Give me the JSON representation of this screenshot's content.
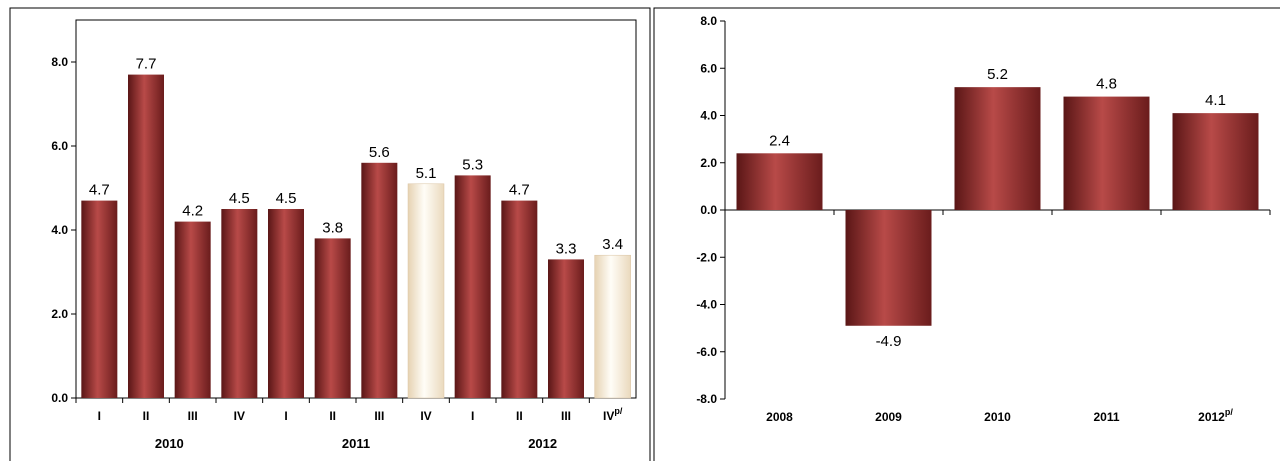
{
  "chart_data": [
    {
      "type": "bar",
      "categories": [
        "I",
        "II",
        "III",
        "IV",
        "I",
        "II",
        "III",
        "IV",
        "I",
        "II",
        "III",
        "IV"
      ],
      "category_superscripts": [
        "",
        "",
        "",
        "",
        "",
        "",
        "",
        "",
        "",
        "",
        "",
        "p/"
      ],
      "groups": [
        {
          "label": "2010",
          "span": [
            0,
            3
          ]
        },
        {
          "label": "2011",
          "span": [
            4,
            7
          ]
        },
        {
          "label": "2012",
          "span": [
            8,
            11
          ]
        }
      ],
      "values": [
        4.7,
        7.7,
        4.2,
        4.5,
        4.5,
        3.8,
        5.6,
        5.1,
        5.3,
        4.7,
        3.3,
        3.4
      ],
      "data_labels": [
        "4.7",
        "7.7",
        "4.2",
        "4.5",
        "4.5",
        "3.8",
        "5.6",
        "5.1",
        "5.3",
        "4.7",
        "3.3",
        "3.4"
      ],
      "highlight": [
        false,
        false,
        false,
        false,
        false,
        false,
        false,
        true,
        false,
        false,
        false,
        true
      ],
      "ylim": [
        0,
        9
      ],
      "yticks": [
        "0.0",
        "2.0",
        "4.0",
        "6.0",
        "8.0"
      ],
      "ytick_values": [
        0,
        2,
        4,
        6,
        8
      ],
      "grid": false,
      "colors": {
        "bar": "#8f2f2f",
        "bar_light": "#b84a48",
        "bar_dark": "#5a1616",
        "highlight": "#fbf5e8",
        "highlight_edge": "#d9c3a2"
      }
    },
    {
      "type": "bar",
      "categories": [
        "2008",
        "2009",
        "2010",
        "2011",
        "2012"
      ],
      "category_superscripts": [
        "",
        "",
        "",
        "",
        "p/"
      ],
      "values": [
        2.4,
        -4.9,
        5.2,
        4.8,
        4.1
      ],
      "data_labels": [
        "2.4",
        "-4.9",
        "5.2",
        "4.8",
        "4.1"
      ],
      "ylim": [
        -8,
        8
      ],
      "yticks": [
        "-8.0",
        "-6.0",
        "-4.0",
        "-2.0",
        "0.0",
        "2.0",
        "4.0",
        "6.0",
        "8.0"
      ],
      "ytick_values": [
        -8,
        -6,
        -4,
        -2,
        0,
        2,
        4,
        6,
        8
      ],
      "grid": false,
      "colors": {
        "bar": "#8f2f2f",
        "bar_light": "#b84a48",
        "bar_dark": "#5a1616"
      }
    }
  ]
}
